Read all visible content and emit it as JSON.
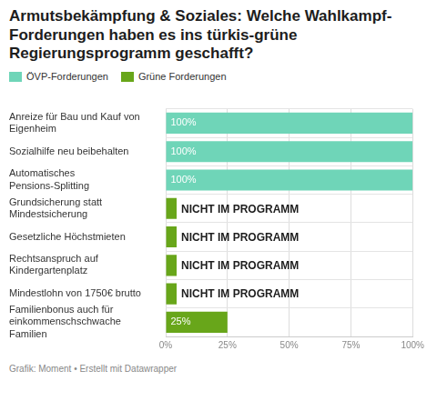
{
  "chart_data": {
    "type": "bar",
    "orientation": "horizontal",
    "title": "Armutsbekämpfung & Soziales: Welche Wahlkampf-Forderungen haben es ins türkis-grüne Regierungsprogramm geschafft?",
    "source": "Grafik: Moment • Erstellt mit Datawrapper",
    "categories": [
      "Anreize für Bau und Kauf von Eigenheim",
      "Sozialhilfe neu beibehalten",
      "Automatisches Pensions-Splitting",
      "Grundsicherung statt Mindestsicherung",
      "Gesetzliche Höchstmieten",
      "Rechtsanspruch auf Kindergartenplatz",
      "Mindestlohn von 1750€ brutto",
      "Familienbonus auch für einkommenschschwache Familien"
    ],
    "series": [
      {
        "name": "ÖVP-Forderungen",
        "color": "#6fd5b8",
        "values": [
          100,
          100,
          100,
          null,
          null,
          null,
          null,
          null
        ],
        "value_labels": [
          "100%",
          "100%",
          "100%",
          null,
          null,
          null,
          null,
          null
        ]
      },
      {
        "name": "Grüne Forderungen",
        "color": "#68a61a",
        "values": [
          null,
          null,
          null,
          0,
          0,
          0,
          0,
          25
        ],
        "value_labels": [
          null,
          null,
          null,
          "NICHT IM PROGRAMM",
          "NICHT IM PROGRAMM",
          "NICHT IM PROGRAMM",
          "NICHT IM PROGRAMM",
          "25%"
        ]
      }
    ],
    "xlim": [
      0,
      100
    ],
    "xticks": [
      {
        "value": 0,
        "label": "0%"
      },
      {
        "value": 25,
        "label": "25%"
      },
      {
        "value": 50,
        "label": "50%"
      },
      {
        "value": 75,
        "label": "75%"
      },
      {
        "value": 100,
        "label": "100%"
      }
    ],
    "grid": true,
    "legend": "top-left",
    "stacked": true,
    "data_labels": true
  }
}
